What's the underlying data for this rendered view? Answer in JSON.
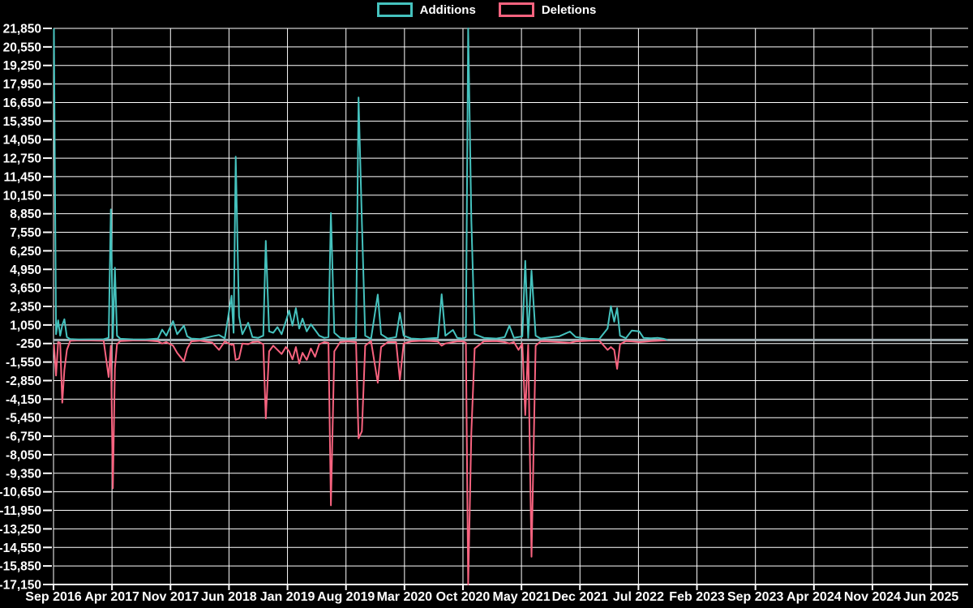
{
  "legend": {
    "items": [
      {
        "label": "Additions",
        "color": "#45c2be"
      },
      {
        "label": "Deletions",
        "color": "#f8637f"
      }
    ]
  },
  "colors": {
    "background": "#000000",
    "grid": "#ffffff",
    "zero_line": "#a3b1b6",
    "axis_text": "#ffffff",
    "additions": "#45c2be",
    "deletions": "#f8637f"
  },
  "chart_data": {
    "type": "line",
    "title": "",
    "legend_position": "top",
    "grid": true,
    "x_tick_labels": [
      "Sep 2016",
      "Apr 2017",
      "Nov 2017",
      "Jun 2018",
      "Jan 2019",
      "Aug 2019",
      "Mar 2020",
      "Oct 2020",
      "May 2021",
      "Dec 2021",
      "Jul 2022",
      "Feb 2023",
      "Sep 2023",
      "Apr 2024",
      "Nov 2024",
      "Jun 2025"
    ],
    "x_months_per_tick": 7,
    "ylim": [
      -17150,
      21850
    ],
    "ytick_step": 1300,
    "series": [
      {
        "name": "Additions",
        "color": "#45c2be",
        "key": 1
      },
      {
        "name": "Deletions",
        "color": "#f8637f",
        "key": 2
      }
    ],
    "points_format": [
      "months_since_Sep_2016",
      "additions",
      "deletions"
    ],
    "points": [
      [
        0.05,
        21850,
        -300
      ],
      [
        0.3,
        400,
        -2500
      ],
      [
        0.55,
        1380,
        -150
      ],
      [
        0.8,
        300,
        -200
      ],
      [
        1.05,
        1040,
        -4400
      ],
      [
        1.3,
        1450,
        -2100
      ],
      [
        1.6,
        200,
        -700
      ],
      [
        2.0,
        60,
        -60
      ],
      [
        3.0,
        30,
        -30
      ],
      [
        4.5,
        40,
        -40
      ],
      [
        6.0,
        50,
        -50
      ],
      [
        6.6,
        150,
        -2600
      ],
      [
        6.86,
        9150,
        -400
      ],
      [
        7.1,
        150,
        -10400
      ],
      [
        7.35,
        5060,
        -2000
      ],
      [
        7.6,
        300,
        -300
      ],
      [
        8.0,
        80,
        -80
      ],
      [
        9.5,
        40,
        -40
      ],
      [
        11.0,
        30,
        -30
      ],
      [
        12.5,
        100,
        -100
      ],
      [
        13.0,
        720,
        -250
      ],
      [
        13.5,
        300,
        -150
      ],
      [
        14.3,
        1320,
        -400
      ],
      [
        14.8,
        400,
        -900
      ],
      [
        15.6,
        1000,
        -1500
      ],
      [
        16.0,
        250,
        -600
      ],
      [
        16.5,
        100,
        -100
      ],
      [
        17.5,
        60,
        -50
      ],
      [
        18.2,
        150,
        -120
      ],
      [
        19.0,
        260,
        -180
      ],
      [
        19.8,
        350,
        -700
      ],
      [
        20.5,
        120,
        -100
      ],
      [
        21.3,
        3100,
        -350
      ],
      [
        21.55,
        500,
        -300
      ],
      [
        21.8,
        12850,
        -1400
      ],
      [
        22.2,
        1670,
        -1300
      ],
      [
        22.6,
        400,
        -250
      ],
      [
        23.3,
        1210,
        -300
      ],
      [
        23.8,
        200,
        -150
      ],
      [
        24.5,
        150,
        -120
      ],
      [
        25.1,
        300,
        -300
      ],
      [
        25.4,
        6950,
        -5500
      ],
      [
        25.8,
        600,
        -800
      ],
      [
        26.3,
        500,
        -400
      ],
      [
        26.8,
        900,
        -700
      ],
      [
        27.3,
        400,
        -990
      ],
      [
        27.8,
        1300,
        -500
      ],
      [
        28.2,
        2060,
        -800
      ],
      [
        28.6,
        1000,
        -1365
      ],
      [
        29.0,
        2230,
        -500
      ],
      [
        29.4,
        800,
        -1650
      ],
      [
        29.8,
        1500,
        -900
      ],
      [
        30.3,
        600,
        -1400
      ],
      [
        30.8,
        1100,
        -600
      ],
      [
        31.3,
        700,
        -1180
      ],
      [
        31.8,
        300,
        -300
      ],
      [
        32.4,
        150,
        -150
      ],
      [
        32.9,
        200,
        -200
      ],
      [
        33.2,
        8900,
        -11600
      ],
      [
        33.6,
        500,
        -800
      ],
      [
        34.3,
        150,
        -150
      ],
      [
        35.2,
        100,
        -100
      ],
      [
        36.2,
        150,
        -150
      ],
      [
        36.5,
        17000,
        -6900
      ],
      [
        36.9,
        8300,
        -6400
      ],
      [
        37.3,
        300,
        -400
      ],
      [
        38.0,
        80,
        -80
      ],
      [
        38.8,
        3180,
        -3000
      ],
      [
        39.2,
        400,
        -500
      ],
      [
        40.0,
        100,
        -150
      ],
      [
        41.0,
        200,
        -150
      ],
      [
        41.45,
        1900,
        -2800
      ],
      [
        41.9,
        300,
        -250
      ],
      [
        42.8,
        100,
        -100
      ],
      [
        44.0,
        60,
        -60
      ],
      [
        45.2,
        120,
        -80
      ],
      [
        46.0,
        150,
        -120
      ],
      [
        46.45,
        3200,
        -400
      ],
      [
        46.9,
        300,
        -250
      ],
      [
        47.8,
        700,
        -150
      ],
      [
        48.3,
        150,
        -100
      ],
      [
        49.0,
        100,
        -100
      ],
      [
        49.35,
        200,
        -200
      ],
      [
        49.62,
        21850,
        -17150
      ],
      [
        50.0,
        8400,
        -6500
      ],
      [
        50.4,
        400,
        -600
      ],
      [
        51.5,
        150,
        -100
      ],
      [
        53.0,
        100,
        -80
      ],
      [
        54.0,
        200,
        -150
      ],
      [
        54.55,
        1000,
        -250
      ],
      [
        55.1,
        150,
        -150
      ],
      [
        55.65,
        200,
        -700
      ],
      [
        56.1,
        250,
        -250
      ],
      [
        56.45,
        5550,
        -5270
      ],
      [
        56.8,
        150,
        -350
      ],
      [
        57.2,
        4850,
        -15200
      ],
      [
        57.7,
        300,
        -400
      ],
      [
        58.3,
        100,
        -100
      ],
      [
        59.0,
        150,
        -100
      ],
      [
        60.5,
        250,
        -150
      ],
      [
        61.8,
        590,
        -200
      ],
      [
        62.5,
        200,
        -100
      ],
      [
        64.0,
        80,
        -60
      ],
      [
        65.3,
        60,
        -40
      ],
      [
        66.3,
        800,
        -700
      ],
      [
        66.7,
        2370,
        -500
      ],
      [
        67.1,
        1280,
        -700
      ],
      [
        67.45,
        2230,
        -2030
      ],
      [
        67.8,
        300,
        -300
      ],
      [
        68.5,
        120,
        -80
      ],
      [
        69.2,
        660,
        -100
      ],
      [
        70.1,
        600,
        -150
      ],
      [
        70.6,
        150,
        -130
      ],
      [
        71.5,
        120,
        -80
      ],
      [
        72.3,
        150,
        -60
      ],
      [
        73.0,
        80,
        -40
      ],
      [
        73.5,
        0,
        0
      ]
    ]
  }
}
